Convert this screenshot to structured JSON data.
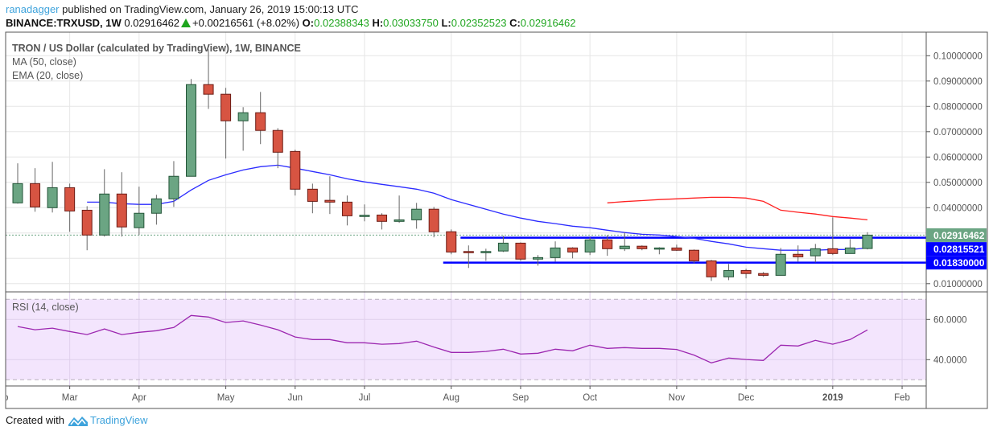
{
  "header": {
    "author": "ranadagger",
    "published_text": "published on TradingView.com, January 26, 2019 15:00:13 UTC",
    "symbol": "BINANCE:TRXUSD, 1W",
    "last": "0.02916462",
    "change": "+0.00216561 (+8.02%)",
    "open_label": "O:",
    "open": "0.02388343",
    "high_label": "H:",
    "high": "0.03033750",
    "low_label": "L:",
    "low": "0.02352523",
    "close_label": "C:",
    "close": "0.02916462"
  },
  "legend": {
    "title": "TRON / US Dollar (calculated by TradingView), 1W, BINANCE",
    "ma": "MA (50, close)",
    "ema": "EMA (20, close)",
    "rsi": "RSI (14, close)"
  },
  "footer": {
    "created_with": "Created with",
    "brand": "TradingView"
  },
  "colors": {
    "up": "#6ba583",
    "down": "#d75442",
    "ema": "#2b2bff",
    "ma": "#ff2020",
    "rsi": "#9c27b0",
    "level": "#0000ff",
    "rsi_bg": "#f3e5fd"
  },
  "chart_data": [
    {
      "type": "candlestick",
      "interval": "1W",
      "ylim": [
        0.005,
        0.105
      ],
      "grid": true,
      "y_ticks": [
        "0.10000000",
        "0.09000000",
        "0.08000000",
        "0.07000000",
        "0.06000000",
        "0.05000000",
        "0.04000000",
        "0.01000000"
      ],
      "x_ticks": [
        {
          "label": "Feb",
          "date": "2018-02-05"
        },
        {
          "label": "Mar",
          "date": "2018-03-05"
        },
        {
          "label": "Apr",
          "date": "2018-04-02"
        },
        {
          "label": "May",
          "date": "2018-05-07"
        },
        {
          "label": "Jun",
          "date": "2018-06-04"
        },
        {
          "label": "Jul",
          "date": "2018-07-02"
        },
        {
          "label": "Aug",
          "date": "2018-08-06"
        },
        {
          "label": "Sep",
          "date": "2018-09-03"
        },
        {
          "label": "Oct",
          "date": "2018-10-01"
        },
        {
          "label": "Nov",
          "date": "2018-11-05"
        },
        {
          "label": "Dec",
          "date": "2018-12-03"
        },
        {
          "label": "2019",
          "date": "2019-01-07",
          "bold": true
        },
        {
          "label": "Feb",
          "date": "2019-02-04"
        }
      ],
      "candles_columns": [
        "date",
        "open",
        "high",
        "low",
        "close"
      ],
      "candles": [
        [
          "2018-02-12",
          0.0419,
          0.0575,
          0.0416,
          0.0495
        ],
        [
          "2018-02-19",
          0.0495,
          0.0556,
          0.0384,
          0.0403
        ],
        [
          "2018-02-26",
          0.04,
          0.0581,
          0.0381,
          0.0479
        ],
        [
          "2018-03-05",
          0.0479,
          0.0495,
          0.0305,
          0.0387
        ],
        [
          "2018-03-12",
          0.039,
          0.0406,
          0.0232,
          0.0292
        ],
        [
          "2018-03-19",
          0.0292,
          0.0552,
          0.0286,
          0.0454
        ],
        [
          "2018-03-26",
          0.0454,
          0.054,
          0.0286,
          0.0324
        ],
        [
          "2018-04-02",
          0.0321,
          0.0483,
          0.0292,
          0.0378
        ],
        [
          "2018-04-09",
          0.0378,
          0.0451,
          0.0333,
          0.0435
        ],
        [
          "2018-04-16",
          0.0435,
          0.0584,
          0.0403,
          0.0524
        ],
        [
          "2018-04-23",
          0.0524,
          0.0908,
          0.0524,
          0.0886
        ],
        [
          "2018-04-30",
          0.0886,
          0.1025,
          0.079,
          0.0848
        ],
        [
          "2018-05-07",
          0.0848,
          0.0873,
          0.0594,
          0.0743
        ],
        [
          "2018-05-14",
          0.0743,
          0.0797,
          0.0625,
          0.0775
        ],
        [
          "2018-05-21",
          0.0775,
          0.0857,
          0.0651,
          0.0705
        ],
        [
          "2018-05-28",
          0.0705,
          0.0714,
          0.0556,
          0.0619
        ],
        [
          "2018-06-04",
          0.0622,
          0.0629,
          0.0448,
          0.0473
        ],
        [
          "2018-06-11",
          0.0473,
          0.0495,
          0.0378,
          0.0425
        ],
        [
          "2018-06-18",
          0.0429,
          0.0524,
          0.0375,
          0.0422
        ],
        [
          "2018-06-25",
          0.0422,
          0.0448,
          0.033,
          0.0368
        ],
        [
          "2018-07-02",
          0.0368,
          0.0413,
          0.0346,
          0.037
        ],
        [
          "2018-07-09",
          0.0371,
          0.0378,
          0.0314,
          0.0346
        ],
        [
          "2018-07-16",
          0.0346,
          0.0448,
          0.034,
          0.0352
        ],
        [
          "2018-07-23",
          0.0352,
          0.0419,
          0.0317,
          0.0394
        ],
        [
          "2018-07-30",
          0.0394,
          0.0403,
          0.0283,
          0.0305
        ],
        [
          "2018-08-06",
          0.0305,
          0.0314,
          0.0216,
          0.0225
        ],
        [
          "2018-08-13",
          0.0227,
          0.0251,
          0.0162,
          0.0225
        ],
        [
          "2018-08-20",
          0.0225,
          0.0238,
          0.019,
          0.0227
        ],
        [
          "2018-08-27",
          0.0229,
          0.0289,
          0.0225,
          0.026
        ],
        [
          "2018-09-03",
          0.026,
          0.0263,
          0.019,
          0.0197
        ],
        [
          "2018-09-10",
          0.0197,
          0.0213,
          0.0171,
          0.0203
        ],
        [
          "2018-09-17",
          0.0203,
          0.0267,
          0.0187,
          0.0241
        ],
        [
          "2018-09-24",
          0.0241,
          0.0244,
          0.02,
          0.0225
        ],
        [
          "2018-10-01",
          0.0225,
          0.0283,
          0.0213,
          0.0273
        ],
        [
          "2018-10-08",
          0.0273,
          0.0292,
          0.021,
          0.0238
        ],
        [
          "2018-10-15",
          0.0238,
          0.0302,
          0.0229,
          0.0248
        ],
        [
          "2018-10-22",
          0.0248,
          0.0251,
          0.0232,
          0.0238
        ],
        [
          "2018-10-29",
          0.0238,
          0.0244,
          0.0216,
          0.0241
        ],
        [
          "2018-11-05",
          0.0241,
          0.0254,
          0.0229,
          0.0232
        ],
        [
          "2018-11-12",
          0.0232,
          0.0235,
          0.0181,
          0.019
        ],
        [
          "2018-11-19",
          0.019,
          0.0194,
          0.0111,
          0.0127
        ],
        [
          "2018-11-26",
          0.0127,
          0.0178,
          0.0114,
          0.0152
        ],
        [
          "2018-12-03",
          0.0152,
          0.0159,
          0.0121,
          0.014
        ],
        [
          "2018-12-10",
          0.014,
          0.0146,
          0.0127,
          0.0133
        ],
        [
          "2018-12-17",
          0.0133,
          0.0241,
          0.0133,
          0.0216
        ],
        [
          "2018-12-24",
          0.0216,
          0.0251,
          0.0187,
          0.0206
        ],
        [
          "2018-12-31",
          0.021,
          0.0257,
          0.0184,
          0.0238
        ],
        [
          "2019-01-07",
          0.0238,
          0.0362,
          0.0213,
          0.0219
        ],
        [
          "2019-01-14",
          0.0219,
          0.0276,
          0.0219,
          0.0241
        ],
        [
          "2019-01-21",
          0.02388343,
          0.0303375,
          0.02352523,
          0.02916462
        ]
      ],
      "ema20": [
        null,
        null,
        null,
        null,
        0.0422,
        0.0422,
        0.0416,
        0.0413,
        0.0413,
        0.0425,
        0.047,
        0.0508,
        0.053,
        0.0549,
        0.0562,
        0.0568,
        0.0556,
        0.0543,
        0.053,
        0.0514,
        0.0502,
        0.0492,
        0.0483,
        0.0473,
        0.0457,
        0.0432,
        0.0413,
        0.0394,
        0.0375,
        0.0359,
        0.0346,
        0.0337,
        0.0327,
        0.0321,
        0.0311,
        0.0302,
        0.0295,
        0.0292,
        0.0286,
        0.0279,
        0.0267,
        0.0257,
        0.0244,
        0.0238,
        0.0232,
        0.0232,
        0.0232,
        0.0235,
        0.0235,
        0.0241
      ],
      "ma50": [
        null,
        null,
        null,
        null,
        null,
        null,
        null,
        null,
        null,
        null,
        null,
        null,
        null,
        null,
        null,
        null,
        null,
        null,
        null,
        null,
        null,
        null,
        null,
        null,
        null,
        null,
        null,
        null,
        null,
        null,
        null,
        null,
        null,
        null,
        0.0419,
        0.0424,
        0.0428,
        0.0432,
        0.0435,
        0.0438,
        0.0441,
        0.0441,
        0.0438,
        0.0425,
        0.039,
        0.0382,
        0.0375,
        0.0365,
        0.0359,
        0.0352
      ],
      "horizontal_lines": [
        {
          "value": 0.02815521,
          "label": "0.02815521",
          "from_date": "2018-08-13"
        },
        {
          "value": 0.0183,
          "label": "0.01830000",
          "from_date": "2018-08-06"
        }
      ],
      "last_price": {
        "value": 0.02916462,
        "label": "0.02916462"
      }
    },
    {
      "type": "line",
      "name": "RSI (14, close)",
      "ylim": [
        25,
        75
      ],
      "bands": [
        70,
        30
      ],
      "y_ticks": [
        "60.0000",
        "40.0000"
      ],
      "values": [
        56.5,
        54.9,
        55.7,
        54.0,
        52.5,
        55.3,
        52.5,
        53.6,
        54.4,
        56.0,
        62.0,
        61.2,
        58.5,
        59.3,
        57.2,
        54.9,
        51.3,
        50.0,
        50.0,
        48.4,
        48.4,
        47.7,
        48.0,
        49.2,
        46.3,
        43.6,
        43.6,
        44.1,
        45.2,
        42.8,
        43.2,
        45.2,
        44.4,
        47.2,
        45.6,
        46.0,
        45.6,
        45.6,
        45.1,
        42.3,
        38.4,
        40.8,
        40.1,
        39.6,
        47.2,
        46.8,
        49.6,
        47.7,
        50.0,
        54.8
      ]
    }
  ]
}
